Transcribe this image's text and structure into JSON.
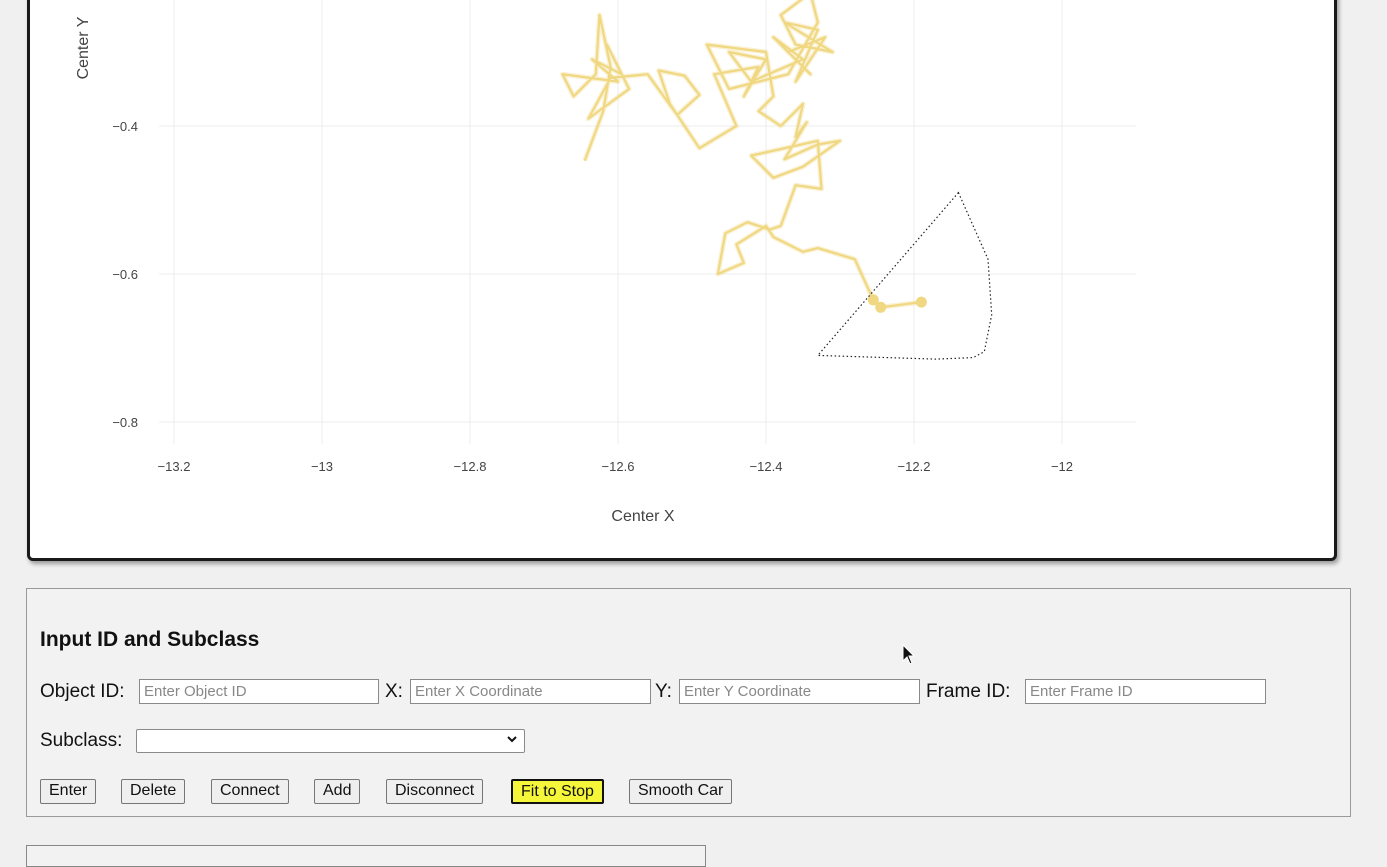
{
  "chart_data": {
    "type": "line",
    "xlabel": "Center X",
    "ylabel": "Center Y",
    "x_ticks": [
      "−13.2",
      "−13",
      "−12.8",
      "−12.6",
      "−12.4",
      "−12.2",
      "−12"
    ],
    "x_tick_values": [
      -13.2,
      -13.0,
      -12.8,
      -12.6,
      -12.4,
      -12.2,
      -12.0
    ],
    "y_ticks": [
      "−0.4",
      "−0.6",
      "−0.8"
    ],
    "y_tick_values": [
      -0.4,
      -0.6,
      -0.8
    ],
    "xlim": [
      -13.22,
      -11.9
    ],
    "grid": true,
    "trajectory_color": "#f0d882",
    "trajectory": [
      [
        -12.645,
        -0.447
      ],
      [
        -12.62,
        -0.38
      ],
      [
        -12.61,
        -0.32
      ],
      [
        -12.625,
        -0.25
      ],
      [
        -12.63,
        -0.33
      ],
      [
        -12.66,
        -0.36
      ],
      [
        -12.675,
        -0.33
      ],
      [
        -12.6,
        -0.34
      ],
      [
        -12.635,
        -0.31
      ],
      [
        -12.595,
        -0.33
      ],
      [
        -12.615,
        -0.29
      ],
      [
        -12.585,
        -0.35
      ],
      [
        -12.64,
        -0.39
      ],
      [
        -12.61,
        -0.335
      ],
      [
        -12.56,
        -0.33
      ],
      [
        -12.52,
        -0.385
      ],
      [
        -12.49,
        -0.358
      ],
      [
        -12.51,
        -0.332
      ],
      [
        -12.545,
        -0.325
      ],
      [
        -12.53,
        -0.37
      ],
      [
        -12.49,
        -0.43
      ],
      [
        -12.44,
        -0.4
      ],
      [
        -12.47,
        -0.33
      ],
      [
        -12.41,
        -0.32
      ],
      [
        -12.43,
        -0.36
      ],
      [
        -12.4,
        -0.31
      ],
      [
        -12.45,
        -0.3
      ],
      [
        -12.42,
        -0.34
      ],
      [
        -12.35,
        -0.31
      ],
      [
        -12.39,
        -0.28
      ],
      [
        -12.34,
        -0.33
      ],
      [
        -12.37,
        -0.3
      ],
      [
        -12.32,
        -0.28
      ],
      [
        -12.36,
        -0.34
      ],
      [
        -12.33,
        -0.27
      ],
      [
        -12.375,
        -0.26
      ],
      [
        -12.31,
        -0.3
      ],
      [
        -12.36,
        -0.29
      ],
      [
        -12.38,
        -0.25
      ],
      [
        -12.34,
        -0.22
      ],
      [
        -12.33,
        -0.26
      ],
      [
        -12.37,
        -0.33
      ],
      [
        -12.45,
        -0.35
      ],
      [
        -12.48,
        -0.29
      ],
      [
        -12.4,
        -0.3
      ],
      [
        -12.39,
        -0.36
      ],
      [
        -12.41,
        -0.38
      ],
      [
        -12.38,
        -0.4
      ],
      [
        -12.35,
        -0.37
      ],
      [
        -12.36,
        -0.415
      ],
      [
        -12.345,
        -0.395
      ],
      [
        -12.375,
        -0.445
      ],
      [
        -12.33,
        -0.425
      ],
      [
        -12.3,
        -0.42
      ],
      [
        -12.35,
        -0.455
      ],
      [
        -12.39,
        -0.47
      ],
      [
        -12.42,
        -0.44
      ],
      [
        -12.33,
        -0.42
      ],
      [
        -12.325,
        -0.485
      ],
      [
        -12.36,
        -0.48
      ],
      [
        -12.38,
        -0.535
      ],
      [
        -12.395,
        -0.54
      ],
      [
        -12.425,
        -0.53
      ],
      [
        -12.455,
        -0.545
      ],
      [
        -12.465,
        -0.6
      ],
      [
        -12.43,
        -0.585
      ],
      [
        -12.44,
        -0.56
      ],
      [
        -12.4,
        -0.535
      ],
      [
        -12.39,
        -0.55
      ],
      [
        -12.35,
        -0.57
      ],
      [
        -12.33,
        -0.565
      ],
      [
        -12.28,
        -0.58
      ],
      [
        -12.255,
        -0.635
      ],
      [
        -12.245,
        -0.645
      ],
      [
        -12.19,
        -0.638
      ]
    ],
    "markers": [
      [
        -12.255,
        -0.635
      ],
      [
        -12.245,
        -0.645
      ],
      [
        -12.19,
        -0.638
      ]
    ],
    "polygon": [
      [
        -12.14,
        -0.49
      ],
      [
        -12.1,
        -0.58
      ],
      [
        -12.095,
        -0.655
      ],
      [
        -12.105,
        -0.705
      ],
      [
        -12.12,
        -0.713
      ],
      [
        -12.17,
        -0.715
      ],
      [
        -12.33,
        -0.71
      ]
    ],
    "polygon_color": "#222222"
  },
  "form": {
    "title": "Input ID and Subclass",
    "object_id_label": "Object ID:",
    "object_id_placeholder": "Enter Object ID",
    "x_label": "X:",
    "x_placeholder": "Enter X Coordinate",
    "y_label": "Y:",
    "y_placeholder": "Enter Y Coordinate",
    "frame_id_label": "Frame ID:",
    "frame_id_placeholder": "Enter Frame ID",
    "subclass_label": "Subclass:",
    "subclass_value": ""
  },
  "buttons": {
    "enter": "Enter",
    "delete": "Delete",
    "connect": "Connect",
    "add": "Add",
    "disconnect": "Disconnect",
    "fit_to_stop": "Fit to Stop",
    "smooth_car": "Smooth Car",
    "highlight_color": "#f5f53a"
  },
  "icons": {
    "dropdown": "chevron-down-icon",
    "cursor": "mouse-pointer-icon"
  }
}
